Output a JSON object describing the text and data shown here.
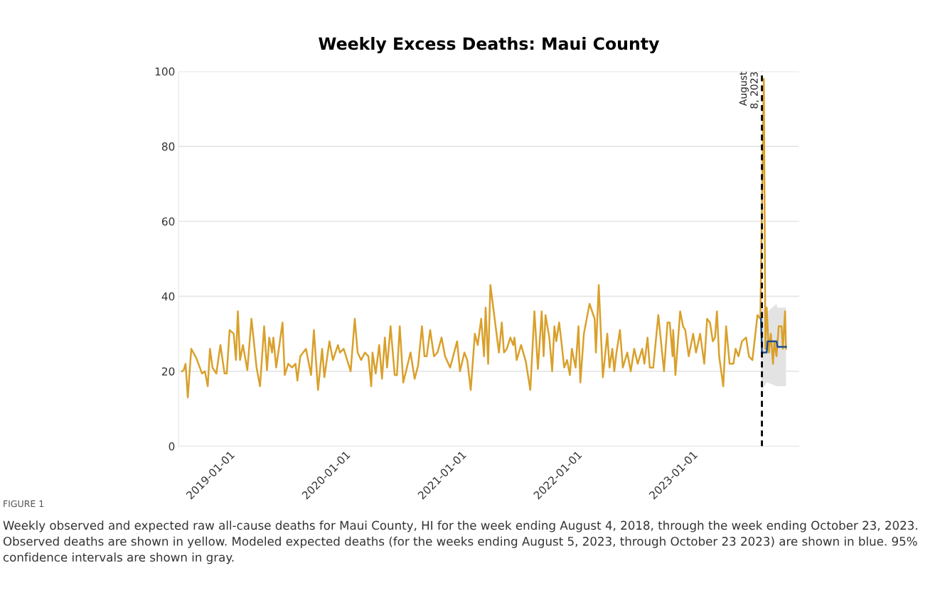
{
  "chart_data": {
    "type": "line",
    "title": "Weekly Excess Deaths: Maui County",
    "xlim": [
      "2018-07-24",
      "2023-12-03"
    ],
    "ylim": [
      0,
      100
    ],
    "xticks": [
      "2019-01-01",
      "2020-01-01",
      "2021-01-01",
      "2022-01-01",
      "2023-01-01"
    ],
    "yticks": [
      0,
      20,
      40,
      60,
      80,
      100
    ],
    "grid": "y",
    "legend": false,
    "marker": "none",
    "line_style": "solid",
    "series": [
      {
        "color": "#d9a02b",
        "x": [
          "2018-08-04",
          "2018-08-09",
          "2018-08-15",
          "2018-08-22",
          "2018-09-02",
          "2018-09-18",
          "2018-10-06",
          "2018-10-15",
          "2018-10-24",
          "2018-10-31",
          "2018-11-08",
          "2018-11-20",
          "2018-12-03",
          "2018-12-16",
          "2018-12-23",
          "2019-01-01",
          "2019-01-14",
          "2019-01-21",
          "2019-01-27",
          "2019-02-03",
          "2019-02-12",
          "2019-02-26",
          "2019-03-11",
          "2019-03-27",
          "2019-04-07",
          "2019-04-20",
          "2019-04-29",
          "2019-05-06",
          "2019-05-15",
          "2019-05-19",
          "2019-05-28",
          "2019-06-17",
          "2019-06-24",
          "2019-07-05",
          "2019-07-17",
          "2019-07-28",
          "2019-08-03",
          "2019-08-12",
          "2019-08-30",
          "2019-09-15",
          "2019-09-24",
          "2019-10-07",
          "2019-10-20",
          "2019-10-27",
          "2019-11-12",
          "2019-11-23",
          "2019-12-09",
          "2019-12-15",
          "2019-12-27",
          "2020-01-18",
          "2020-01-31",
          "2020-02-09",
          "2020-02-20",
          "2020-03-03",
          "2020-03-14",
          "2020-03-23",
          "2020-03-27",
          "2020-04-06",
          "2020-04-17",
          "2020-04-26",
          "2020-05-05",
          "2020-05-12",
          "2020-05-23",
          "2020-06-05",
          "2020-06-12",
          "2020-06-21",
          "2020-07-02",
          "2020-07-25",
          "2020-08-07",
          "2020-08-18",
          "2020-08-30",
          "2020-09-07",
          "2020-09-14",
          "2020-09-25",
          "2020-10-07",
          "2020-10-18",
          "2020-10-31",
          "2020-11-11",
          "2020-11-27",
          "2020-12-19",
          "2020-12-28",
          "2021-01-11",
          "2021-01-20",
          "2021-01-31",
          "2021-02-13",
          "2021-02-22",
          "2021-03-05",
          "2021-03-14",
          "2021-03-19",
          "2021-03-27",
          "2021-04-03",
          "2021-04-30",
          "2021-05-09",
          "2021-05-16",
          "2021-05-25",
          "2021-06-05",
          "2021-06-14",
          "2021-06-18",
          "2021-06-25",
          "2021-07-09",
          "2021-07-24",
          "2021-08-07",
          "2021-08-20",
          "2021-08-31",
          "2021-09-12",
          "2021-09-18",
          "2021-09-24",
          "2021-10-06",
          "2021-10-15",
          "2021-10-22",
          "2021-10-28",
          "2021-11-06",
          "2021-11-13",
          "2021-11-22",
          "2021-12-01",
          "2021-12-10",
          "2021-12-16",
          "2021-12-28",
          "2022-01-06",
          "2022-01-12",
          "2022-01-23",
          "2022-02-10",
          "2022-02-26",
          "2022-03-02",
          "2022-03-11",
          "2022-03-24",
          "2022-04-07",
          "2022-04-14",
          "2022-04-23",
          "2022-04-29",
          "2022-05-06",
          "2022-05-17",
          "2022-05-26",
          "2022-06-09",
          "2022-06-20",
          "2022-07-01",
          "2022-07-12",
          "2022-07-26",
          "2022-08-02",
          "2022-08-12",
          "2022-08-19",
          "2022-08-30",
          "2022-09-15",
          "2022-10-03",
          "2022-10-14",
          "2022-10-21",
          "2022-10-30",
          "2022-11-01",
          "2022-11-08",
          "2022-11-23",
          "2022-12-02",
          "2022-12-09",
          "2022-12-20",
          "2023-01-03",
          "2023-01-12",
          "2023-01-25",
          "2023-02-07",
          "2023-02-16",
          "2023-02-25",
          "2023-03-06",
          "2023-03-13",
          "2023-03-19",
          "2023-03-26",
          "2023-04-08",
          "2023-04-17",
          "2023-04-28",
          "2023-05-10",
          "2023-05-17",
          "2023-05-26",
          "2023-06-06",
          "2023-06-19",
          "2023-06-28",
          "2023-07-09",
          "2023-07-25",
          "2023-08-03",
          "2023-08-14",
          "2023-08-19",
          "2023-08-23",
          "2023-08-30",
          "2023-09-05",
          "2023-09-12",
          "2023-09-16",
          "2023-09-23",
          "2023-09-30",
          "2023-10-09",
          "2023-10-13",
          "2023-10-20",
          "2023-10-23"
        ],
        "values": [
          20,
          20.3,
          22,
          13,
          26,
          23.5,
          19.4,
          20,
          16,
          26,
          21,
          19.4,
          27,
          19.4,
          19.4,
          31,
          30,
          23,
          36,
          23,
          27,
          20.3,
          34,
          21,
          16,
          32,
          20.3,
          29,
          25,
          29,
          21,
          33,
          19,
          22,
          21,
          22,
          17.5,
          24,
          26,
          19,
          31,
          15,
          26,
          18.4,
          28,
          23,
          27,
          25,
          26,
          20,
          34,
          25,
          23,
          25,
          24,
          16,
          25,
          19.4,
          27,
          18,
          29,
          21,
          32,
          19,
          19,
          32,
          17,
          25,
          18,
          21.6,
          32,
          24,
          24,
          31,
          24,
          25,
          29,
          24,
          21,
          28,
          20,
          25,
          23,
          15,
          30,
          27,
          34,
          24,
          37,
          22,
          43,
          25,
          33,
          25,
          26,
          29,
          27,
          29,
          23,
          27,
          22.5,
          15,
          36,
          20.6,
          36,
          24,
          35,
          29,
          20,
          32,
          28,
          33,
          28,
          21,
          23,
          19,
          26,
          21,
          32,
          17,
          30,
          38,
          34,
          25,
          43,
          18.4,
          30,
          21,
          26,
          20,
          25,
          31,
          21,
          25,
          20,
          26,
          22,
          26,
          22,
          29,
          21,
          21,
          35,
          20,
          33,
          33,
          24,
          31,
          19,
          36,
          32,
          31,
          24,
          30,
          25,
          30,
          22,
          34,
          33,
          28,
          29,
          36,
          24,
          16,
          32,
          22,
          22,
          26,
          24,
          28,
          29,
          24,
          23,
          35,
          34,
          98,
          26,
          37,
          25,
          30,
          22,
          28,
          24,
          32,
          32,
          26,
          36,
          26
        ]
      },
      {
        "color": "#1f4e8c",
        "x": [
          "2023-08-05",
          "2023-08-08",
          "2023-08-23",
          "2023-08-26",
          "2023-09-23",
          "2023-09-26",
          "2023-10-23"
        ],
        "values": [
          34,
          25,
          25,
          28,
          28,
          26.5,
          26.5
        ],
        "lower": [
          16,
          15,
          17,
          17,
          16,
          16,
          16
        ],
        "upper": [
          36,
          37,
          36,
          36,
          38,
          37,
          37
        ]
      }
    ],
    "ref_lines": [
      {
        "axis": "x",
        "value": "2023-08-08",
        "label": "August\n8, 2023",
        "color": "#000000",
        "line_style": "dashed"
      }
    ],
    "annotations": [
      "FIGURE 1",
      "Weekly observed and expected raw all-cause deaths for Maui County, HI for the week ending August 4, 2018, through the week ending October 23, 2023. Observed deaths are shown in yellow. Modeled expected deaths (for the weeks ending August 5, 2023, through October 23 2023) are shown in blue. 95% confidence intervals are shown in gray."
    ]
  }
}
